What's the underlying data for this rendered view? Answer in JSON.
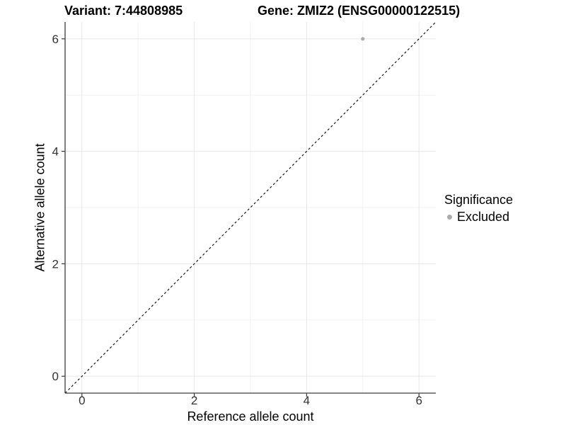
{
  "chart_data": {
    "type": "scatter",
    "title_left": "Variant: 7:44808985",
    "title_right": "Gene: ZMIZ2 (ENSG00000122515)",
    "xlabel": "Reference allele count",
    "ylabel": "Alternative allele count",
    "xlim": [
      -0.3,
      6.3
    ],
    "ylim": [
      -0.3,
      6.3
    ],
    "x_ticks": [
      0,
      2,
      4,
      6
    ],
    "y_ticks": [
      0,
      2,
      4,
      6
    ],
    "x_minor_ticks": [
      1,
      3,
      5
    ],
    "y_minor_ticks": [
      1,
      3,
      5
    ],
    "grid": "major+minor",
    "legend_position": "right",
    "legend_title": "Significance",
    "series": [
      {
        "name": "Excluded",
        "color": "#aaaaaa",
        "marker": "circle",
        "points": [
          {
            "x": 5,
            "y": 6
          }
        ]
      }
    ],
    "reference_line": {
      "kind": "identity",
      "equation": "y = x",
      "style": "dashed",
      "color": "#000000"
    }
  },
  "colors": {
    "background": "#ffffff",
    "grid_major": "#e7e7e7",
    "grid_minor": "#f2f2f2",
    "axis_line": "#3c3c3c",
    "tick_mark": "#3c3c3c",
    "tick_label": "#333333",
    "text": "#000000",
    "point": "#aaaaaa"
  }
}
